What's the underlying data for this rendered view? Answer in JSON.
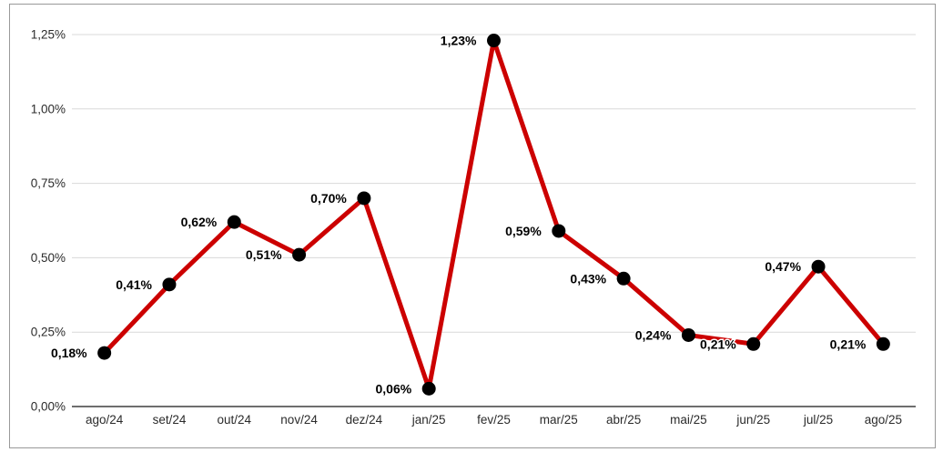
{
  "chart_data": {
    "type": "line",
    "title": "",
    "xlabel": "",
    "ylabel": "",
    "categories": [
      "ago/24",
      "set/24",
      "out/24",
      "nov/24",
      "dez/24",
      "jan/25",
      "fev/25",
      "mar/25",
      "abr/25",
      "mai/25",
      "jun/25",
      "jul/25",
      "ago/25"
    ],
    "series": [
      {
        "name": "monthly-rate",
        "values": [
          0.18,
          0.41,
          0.62,
          0.51,
          0.7,
          0.06,
          1.23,
          0.59,
          0.43,
          0.24,
          0.21,
          0.47,
          0.21
        ],
        "value_labels": [
          "0,18%",
          "0,41%",
          "0,62%",
          "0,51%",
          "0,70%",
          "0,06%",
          "1,23%",
          "0,59%",
          "0,43%",
          "0,24%",
          "0,21%",
          "0,47%",
          "0,21%"
        ]
      }
    ],
    "ylim": [
      0,
      1.25
    ],
    "y_ticks": {
      "values": [
        0,
        0.25,
        0.5,
        0.75,
        1.0,
        1.25
      ],
      "labels": [
        "0,00%",
        "0,25%",
        "0,50%",
        "0,75%",
        "1,00%",
        "1,25%"
      ]
    },
    "grid": true,
    "legend": "none",
    "colors": {
      "line": "#cc0000",
      "marker": "#000000",
      "grid_line": "#d9d9d9",
      "axis_line": "#6e6e6e",
      "tick_text": "#2b2b2b",
      "data_label_text": "#000000",
      "frame_border": "#999999",
      "background": "#ffffff"
    }
  }
}
